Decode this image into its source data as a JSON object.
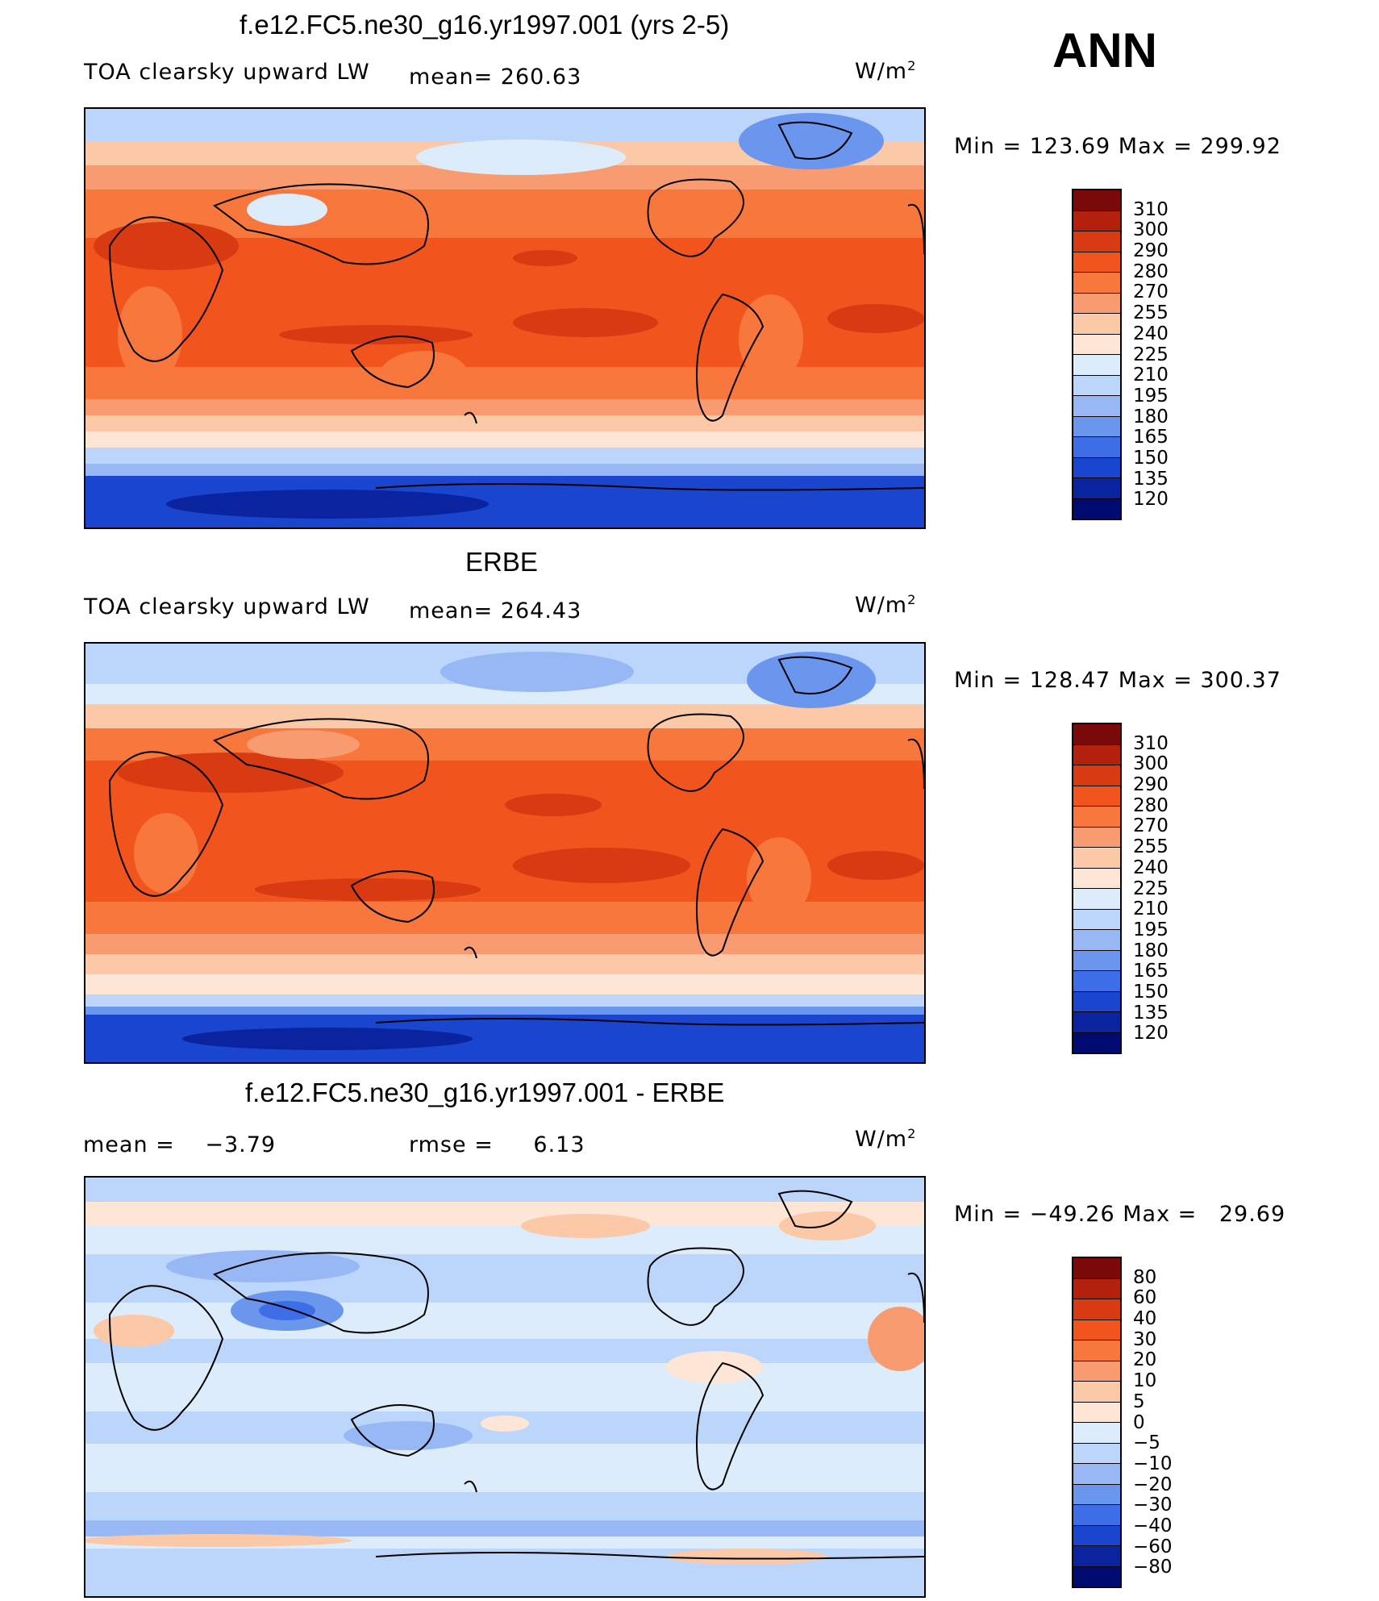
{
  "season": "ANN",
  "panels": [
    {
      "title": "f.e12.FC5.ne30_g16.yr1997.001 (yrs 2-5)",
      "variable": "TOA clearsky upward LW",
      "mean_label": "mean=",
      "mean_value": "260.63",
      "units": "W/m",
      "units_exp": "2",
      "min_label": "Min  =",
      "min_value": "123.69",
      "max_label": "Max  =",
      "max_value": "299.92",
      "colorbar_levels": [
        "310",
        "300",
        "290",
        "280",
        "270",
        "255",
        "240",
        "225",
        "210",
        "195",
        "180",
        "165",
        "150",
        "135",
        "120"
      ]
    },
    {
      "title": "ERBE",
      "variable": "TOA clearsky upward LW",
      "mean_label": "mean=",
      "mean_value": "264.43",
      "units": "W/m",
      "units_exp": "2",
      "min_label": "Min  =",
      "min_value": "128.47",
      "max_label": "Max  =",
      "max_value": "300.37",
      "colorbar_levels": [
        "310",
        "300",
        "290",
        "280",
        "270",
        "255",
        "240",
        "225",
        "210",
        "195",
        "180",
        "165",
        "150",
        "135",
        "120"
      ]
    },
    {
      "title": "f.e12.FC5.ne30_g16.yr1997.001 - ERBE",
      "mean_label": "mean  =",
      "mean_value": "−3.79",
      "rmse_label": "rmse  =",
      "rmse_value": "6.13",
      "units": "W/m",
      "units_exp": "2",
      "min_label": "Min  =",
      "min_value": "−49.26",
      "max_label": "Max  =",
      "max_value": "29.69",
      "colorbar_levels": [
        "80",
        "60",
        "40",
        "30",
        "20",
        "10",
        "5",
        "0",
        "−5",
        "−10",
        "−20",
        "−30",
        "−40",
        "−60",
        "−80"
      ]
    }
  ],
  "colors": {
    "abs_scale": [
      "#7a0a0a",
      "#b3200c",
      "#d83a12",
      "#f2541d",
      "#f7773c",
      "#f99b70",
      "#fbc8a8",
      "#fde6d6",
      "#dcecfb",
      "#bcd6fb",
      "#97b8f5",
      "#6a96ee",
      "#3d6ee7",
      "#1a46cf",
      "#0a24a0",
      "#000a70"
    ],
    "diff_scale": [
      "#7a0a0a",
      "#b3200c",
      "#d83a12",
      "#f2541d",
      "#f7773c",
      "#f99b70",
      "#fbc8a8",
      "#fde6d6",
      "#dcecfb",
      "#bcd6fb",
      "#97b8f5",
      "#6a96ee",
      "#3d6ee7",
      "#1a46cf",
      "#0a24a0",
      "#000a70"
    ]
  }
}
